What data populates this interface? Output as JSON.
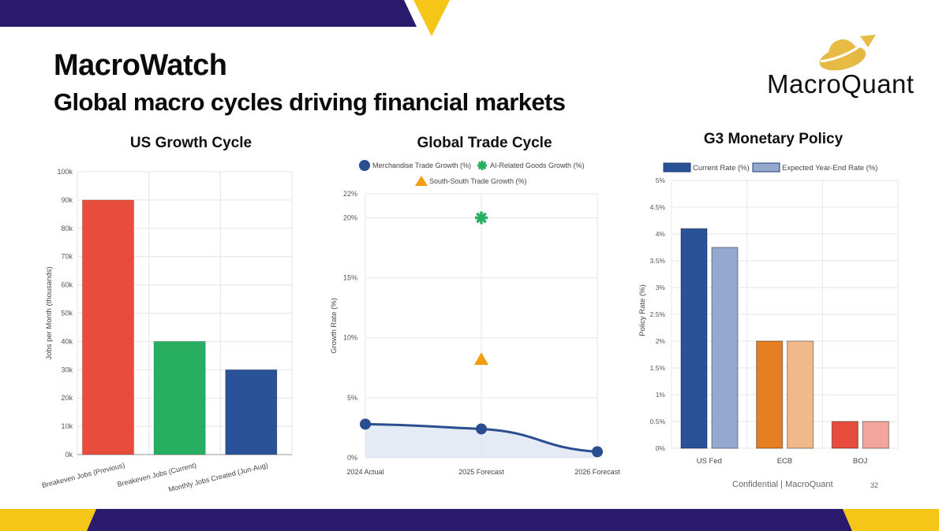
{
  "header": {
    "title": "MacroWatch",
    "subtitle": "Global macro cycles driving financial markets",
    "brand": "MacroQuant"
  },
  "footer": {
    "text": "Confidential | MacroQuant",
    "page": "32"
  },
  "colors": {
    "navy": "#2a1a6e",
    "gold": "#f5c518"
  },
  "chart_data": [
    {
      "type": "bar",
      "title": "US Growth Cycle",
      "ylabel": "Jobs per Month (thousands)",
      "categories": [
        "Breakeven Jobs (Previous)",
        "Breakeven Jobs (Current)",
        "Monthly Jobs Created (Jun-Aug)"
      ],
      "values": [
        90000,
        40000,
        30000
      ],
      "colors": [
        "#e74c3c",
        "#27ae60",
        "#2a5298"
      ],
      "ylim": [
        0,
        100000
      ],
      "yticks": [
        "0k",
        "10k",
        "20k",
        "30k",
        "40k",
        "50k",
        "60k",
        "70k",
        "80k",
        "90k",
        "100k"
      ],
      "grid": true
    },
    {
      "type": "line",
      "title": "Global Trade Cycle",
      "ylabel": "Growth Rate (%)",
      "categories": [
        "2024 Actual",
        "2025 Forecast",
        "2026 Forecast"
      ],
      "yticks": [
        "0%",
        "5%",
        "10%",
        "15%",
        "20%",
        "22%"
      ],
      "ylim": [
        0,
        22
      ],
      "legend": "top",
      "grid": true,
      "series": [
        {
          "name": "Merchandise Trade Growth (%)",
          "values": [
            2.8,
            2.4,
            0.5
          ],
          "color": "#2a4d8f",
          "marker": "circle",
          "fill": true
        },
        {
          "name": "AI-Related Goods Growth (%)",
          "values": [
            null,
            20,
            null
          ],
          "color": "#27ae60",
          "marker": "star"
        },
        {
          "name": "South-South Trade Growth (%)",
          "values": [
            null,
            8.2,
            null
          ],
          "color": "#f39c12",
          "marker": "triangle"
        }
      ]
    },
    {
      "type": "bar",
      "title": "G3 Monetary Policy",
      "ylabel": "Policy Rate (%)",
      "categories": [
        "US Fed",
        "ECB",
        "BOJ"
      ],
      "ylim": [
        0,
        5
      ],
      "yticks": [
        "0%",
        "0.5%",
        "1%",
        "1.5%",
        "2%",
        "2.5%",
        "3%",
        "3.5%",
        "4%",
        "4.5%",
        "5%"
      ],
      "legend": "top",
      "grid": true,
      "series": [
        {
          "name": "Current Rate (%)",
          "values": [
            4.1,
            2.0,
            0.5
          ],
          "colors": [
            "#2a5298",
            "#e67e22",
            "#e74c3c"
          ]
        },
        {
          "name": "Expected Year-End Rate (%)",
          "values": [
            3.75,
            2.0,
            0.5
          ],
          "colors": [
            "#95a9cf",
            "#f0b98a",
            "#f1a59c"
          ]
        }
      ]
    }
  ]
}
